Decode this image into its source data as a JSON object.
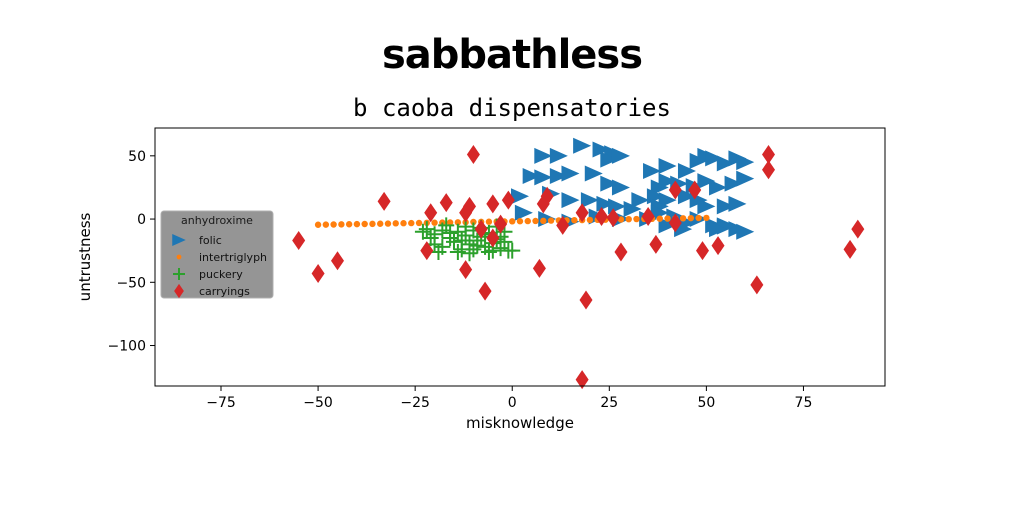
{
  "chart_data": {
    "type": "scatter",
    "title": "sabbathless",
    "subtitle": "b caoba dispensatories",
    "xlabel": "misknowledge",
    "ylabel": "untrustness",
    "xlim": [
      -92,
      96
    ],
    "ylim": [
      -132,
      72
    ],
    "xticks": [
      -75,
      -50,
      -25,
      0,
      25,
      50,
      75
    ],
    "xtick_labels": [
      "−75",
      "−50",
      "−25",
      "0",
      "25",
      "50",
      "75"
    ],
    "yticks": [
      50,
      0,
      -50,
      -100
    ],
    "ytick_labels": [
      "50",
      "0",
      "−50",
      "−100"
    ],
    "grid": false,
    "legend": {
      "title": "anhydroxime",
      "placement": "center-left"
    },
    "series": [
      {
        "name": "folic",
        "marker": "triangle-right",
        "color": "#1f77b4",
        "points": [
          [
            8,
            50
          ],
          [
            12,
            50
          ],
          [
            18,
            58
          ],
          [
            23,
            55
          ],
          [
            26,
            52
          ],
          [
            25,
            47
          ],
          [
            28,
            50
          ],
          [
            5,
            34
          ],
          [
            8,
            33
          ],
          [
            12,
            34
          ],
          [
            15,
            36
          ],
          [
            21,
            36
          ],
          [
            28,
            25
          ],
          [
            2,
            18
          ],
          [
            10,
            20
          ],
          [
            15,
            15
          ],
          [
            20,
            15
          ],
          [
            24,
            12
          ],
          [
            27,
            10
          ],
          [
            31,
            8
          ],
          [
            3,
            5
          ],
          [
            9,
            0
          ],
          [
            15,
            -2
          ],
          [
            22,
            2
          ],
          [
            28,
            0
          ],
          [
            35,
            0
          ],
          [
            40,
            -5
          ],
          [
            45,
            -3
          ],
          [
            55,
            -5
          ],
          [
            58,
            -8
          ],
          [
            36,
            38
          ],
          [
            40,
            42
          ],
          [
            45,
            38
          ],
          [
            48,
            46
          ],
          [
            50,
            50
          ],
          [
            52,
            48
          ],
          [
            55,
            44
          ],
          [
            58,
            48
          ],
          [
            60,
            45
          ],
          [
            38,
            25
          ],
          [
            40,
            30
          ],
          [
            43,
            28
          ],
          [
            47,
            26
          ],
          [
            50,
            30
          ],
          [
            53,
            25
          ],
          [
            57,
            28
          ],
          [
            60,
            32
          ],
          [
            37,
            18
          ],
          [
            40,
            15
          ],
          [
            45,
            18
          ],
          [
            48,
            15
          ],
          [
            50,
            10
          ],
          [
            55,
            10
          ],
          [
            58,
            12
          ],
          [
            38,
            10
          ],
          [
            42,
            2
          ],
          [
            48,
            0
          ],
          [
            52,
            -5
          ],
          [
            55,
            -6
          ],
          [
            60,
            -10
          ],
          [
            25,
            28
          ],
          [
            33,
            15
          ],
          [
            38,
            5
          ],
          [
            44,
            -8
          ],
          [
            53,
            -8
          ]
        ]
      },
      {
        "name": "intertriglyph",
        "marker": "circle",
        "color": "#ff7f0e",
        "points": [
          [
            -50,
            -4.5
          ],
          [
            -48,
            -4.4
          ],
          [
            -46,
            -4.3
          ],
          [
            -44,
            -4.2
          ],
          [
            -42,
            -4.1
          ],
          [
            -40,
            -4.0
          ],
          [
            -38,
            -3.9
          ],
          [
            -36,
            -3.8
          ],
          [
            -34,
            -3.7
          ],
          [
            -32,
            -3.6
          ],
          [
            -30,
            -3.4
          ],
          [
            -28,
            -3.3
          ],
          [
            -26,
            -3.2
          ],
          [
            -24,
            -3.1
          ],
          [
            -22,
            -3.0
          ],
          [
            -20,
            -2.9
          ],
          [
            -18,
            -2.8
          ],
          [
            -16,
            -2.7
          ],
          [
            -14,
            -2.6
          ],
          [
            -12,
            -2.5
          ],
          [
            -10,
            -2.3
          ],
          [
            -8,
            -2.2
          ],
          [
            -6,
            -2.1
          ],
          [
            -4,
            -2.0
          ],
          [
            -2,
            -1.9
          ],
          [
            0,
            -1.8
          ],
          [
            2,
            -1.7
          ],
          [
            4,
            -1.6
          ],
          [
            6,
            -1.5
          ],
          [
            8,
            -1.4
          ],
          [
            10,
            -1.2
          ],
          [
            12,
            -1.1
          ],
          [
            14,
            -1.0
          ],
          [
            16,
            -0.9
          ],
          [
            18,
            -0.8
          ],
          [
            20,
            -0.7
          ],
          [
            22,
            -0.6
          ],
          [
            24,
            -0.5
          ],
          [
            26,
            -0.4
          ],
          [
            28,
            -0.3
          ],
          [
            30,
            -0.1
          ],
          [
            32,
            0.0
          ],
          [
            34,
            0.1
          ],
          [
            36,
            0.2
          ],
          [
            38,
            0.3
          ],
          [
            40,
            0.4
          ],
          [
            42,
            0.5
          ],
          [
            44,
            0.6
          ],
          [
            46,
            0.7
          ],
          [
            48,
            0.8
          ],
          [
            50,
            0.9
          ]
        ]
      },
      {
        "name": "puckery",
        "marker": "plus",
        "color": "#2ca02c",
        "points": [
          [
            -22,
            -8
          ],
          [
            -20,
            -12
          ],
          [
            -18,
            -9
          ],
          [
            -16,
            -15
          ],
          [
            -14,
            -10
          ],
          [
            -12,
            -13
          ],
          [
            -10,
            -9
          ],
          [
            -8,
            -14
          ],
          [
            -6,
            -11
          ],
          [
            -4,
            -16
          ],
          [
            -2,
            -10
          ],
          [
            -1,
            -25
          ],
          [
            -20,
            -20
          ],
          [
            -18,
            -22
          ],
          [
            -15,
            -18
          ],
          [
            -13,
            -24
          ],
          [
            -11,
            -20
          ],
          [
            -9,
            -17
          ],
          [
            -7,
            -22
          ],
          [
            -5,
            -19
          ],
          [
            -3,
            -23
          ],
          [
            0,
            -25
          ],
          [
            -21,
            -15
          ],
          [
            -17,
            -5
          ],
          [
            -14,
            -26
          ],
          [
            -12,
            -6
          ],
          [
            -10,
            -24
          ],
          [
            -8,
            -7
          ],
          [
            -6,
            -26
          ],
          [
            -4,
            -6
          ],
          [
            -2,
            -18
          ],
          [
            -19,
            -26
          ],
          [
            -16,
            -11
          ],
          [
            -13,
            -17
          ],
          [
            -11,
            -27
          ],
          [
            -9,
            -21
          ],
          [
            -7,
            -12
          ],
          [
            -5,
            -25
          ],
          [
            -3,
            -14
          ],
          [
            -23,
            -10
          ]
        ]
      },
      {
        "name": "carryings",
        "marker": "thin-diamond",
        "color": "#d62728",
        "points": [
          [
            -55,
            -17
          ],
          [
            -50,
            -43
          ],
          [
            -45,
            -33
          ],
          [
            -33,
            14
          ],
          [
            -22,
            -25
          ],
          [
            -21,
            5
          ],
          [
            -17,
            13
          ],
          [
            -12,
            5
          ],
          [
            -10,
            51
          ],
          [
            -11,
            10
          ],
          [
            -12,
            -40
          ],
          [
            -8,
            -8
          ],
          [
            -7,
            -57
          ],
          [
            -5,
            12
          ],
          [
            -5,
            -15
          ],
          [
            -3,
            -4
          ],
          [
            -1,
            15
          ],
          [
            7,
            -39
          ],
          [
            8,
            12
          ],
          [
            9,
            18
          ],
          [
            13,
            -5
          ],
          [
            18,
            5
          ],
          [
            19,
            -64
          ],
          [
            18,
            -127
          ],
          [
            23,
            2
          ],
          [
            26,
            1
          ],
          [
            28,
            -26
          ],
          [
            35,
            2
          ],
          [
            37,
            -20
          ],
          [
            42,
            -3
          ],
          [
            42,
            23
          ],
          [
            47,
            23
          ],
          [
            49,
            -25
          ],
          [
            53,
            -21
          ],
          [
            63,
            -52
          ],
          [
            66,
            51
          ],
          [
            66,
            39
          ],
          [
            87,
            -24
          ],
          [
            89,
            -8
          ]
        ]
      }
    ]
  }
}
